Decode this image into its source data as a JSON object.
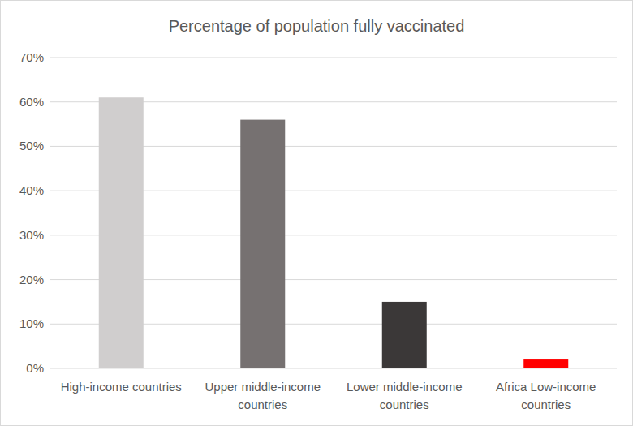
{
  "chart_data": {
    "type": "bar",
    "title": "Percentage of population fully vaccinated",
    "categories": [
      "High-income countries",
      "Upper middle-income countries",
      "Lower middle-income countries",
      "Africa Low-income countries"
    ],
    "values": [
      61,
      56,
      15,
      2
    ],
    "colors": [
      "#d0cece",
      "#767171",
      "#3b3838",
      "#ff0000"
    ],
    "ylim": [
      0,
      70
    ],
    "yticks": [
      {
        "value": 0,
        "label": "0%"
      },
      {
        "value": 10,
        "label": "10%"
      },
      {
        "value": 20,
        "label": "20%"
      },
      {
        "value": 30,
        "label": "30%"
      },
      {
        "value": 40,
        "label": "40%"
      },
      {
        "value": 50,
        "label": "50%"
      },
      {
        "value": 60,
        "label": "60%"
      },
      {
        "value": 70,
        "label": "70%"
      }
    ],
    "grid": true
  }
}
